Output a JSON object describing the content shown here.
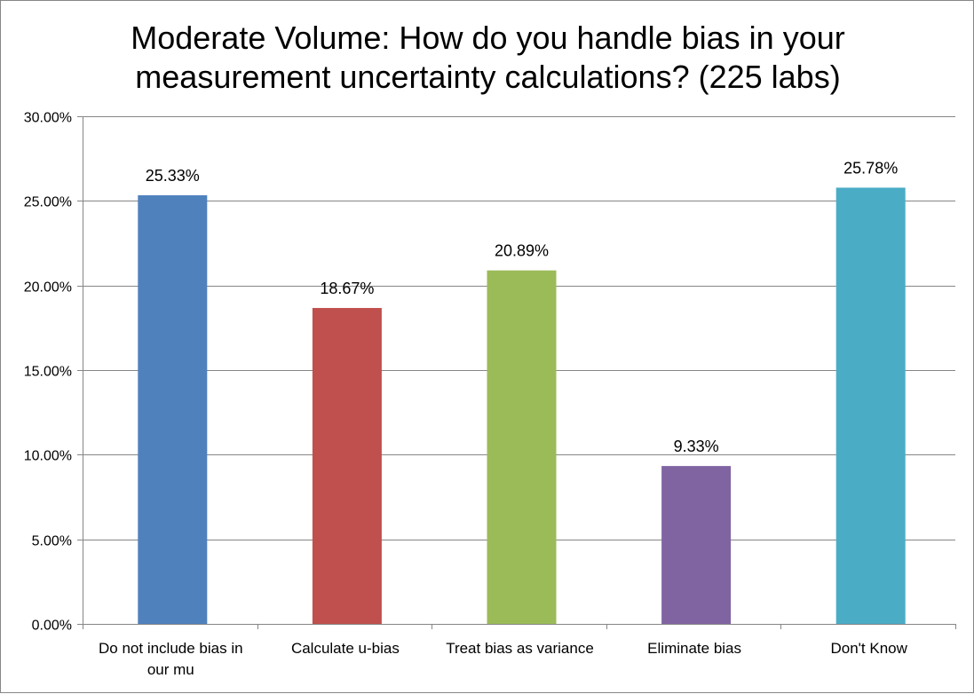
{
  "chart_data": {
    "type": "bar",
    "title_lines": [
      "Moderate Volume: How do you handle bias in your",
      "measurement uncertainty calculations? (225 labs)"
    ],
    "categories": [
      [
        "Do not include bias in",
        "our mu"
      ],
      [
        "Calculate u-bias"
      ],
      [
        "Treat bias as variance"
      ],
      [
        "Eliminate bias"
      ],
      [
        "Don't Know"
      ]
    ],
    "values": [
      25.33,
      18.67,
      20.89,
      9.33,
      25.78
    ],
    "data_labels": [
      "25.33%",
      "18.67%",
      "20.89%",
      "9.33%",
      "25.78%"
    ],
    "colors": [
      "#4F81BD",
      "#C0504D",
      "#9BBB59",
      "#8064A2",
      "#4BACC6"
    ],
    "ylim": [
      0,
      30
    ],
    "yticks": [
      "0.00%",
      "5.00%",
      "10.00%",
      "15.00%",
      "20.00%",
      "25.00%",
      "30.00%"
    ],
    "ytick_values": [
      0,
      5,
      10,
      15,
      20,
      25,
      30
    ],
    "grid": true,
    "xlabel": "",
    "ylabel": "",
    "legend": "none"
  }
}
